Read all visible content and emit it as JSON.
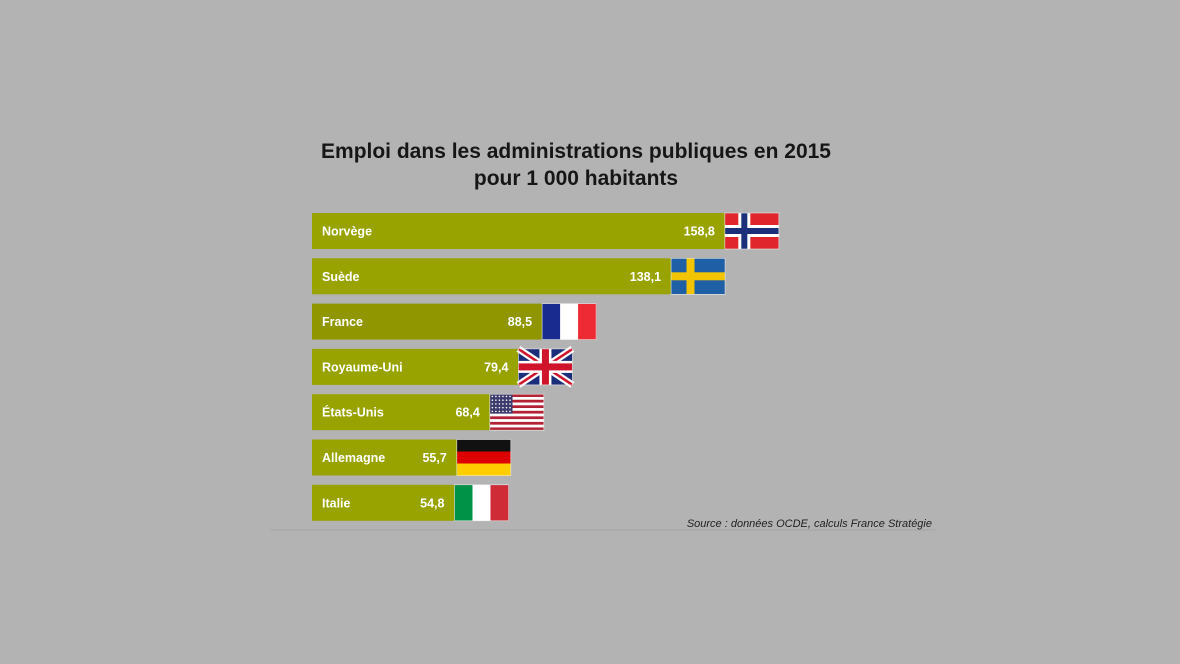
{
  "chart_data": {
    "type": "bar",
    "orientation": "horizontal",
    "title": [
      "Emploi dans les administrations publiques en 2015",
      "pour 1 000 habitants"
    ],
    "categories": [
      "Norvège",
      "Suède",
      "France",
      "Royaume-Uni",
      "États-Unis",
      "Allemagne",
      "Italie"
    ],
    "values": [
      158.8,
      138.1,
      88.5,
      79.4,
      68.4,
      55.7,
      54.8
    ],
    "value_labels": [
      "158,8",
      "138,1",
      "88,5",
      "79,4",
      "68,4",
      "55,7",
      "54,8"
    ],
    "flags": [
      "norway-flag-icon",
      "sweden-flag-icon",
      "france-flag-icon",
      "uk-flag-icon",
      "usa-flag-icon",
      "germany-flag-icon",
      "italy-flag-icon"
    ],
    "bar_color": "#99a300",
    "highlight_color": "#8f9600",
    "highlight_category": "France",
    "source": "Source : données OCDE, calculs France Stratégie"
  }
}
